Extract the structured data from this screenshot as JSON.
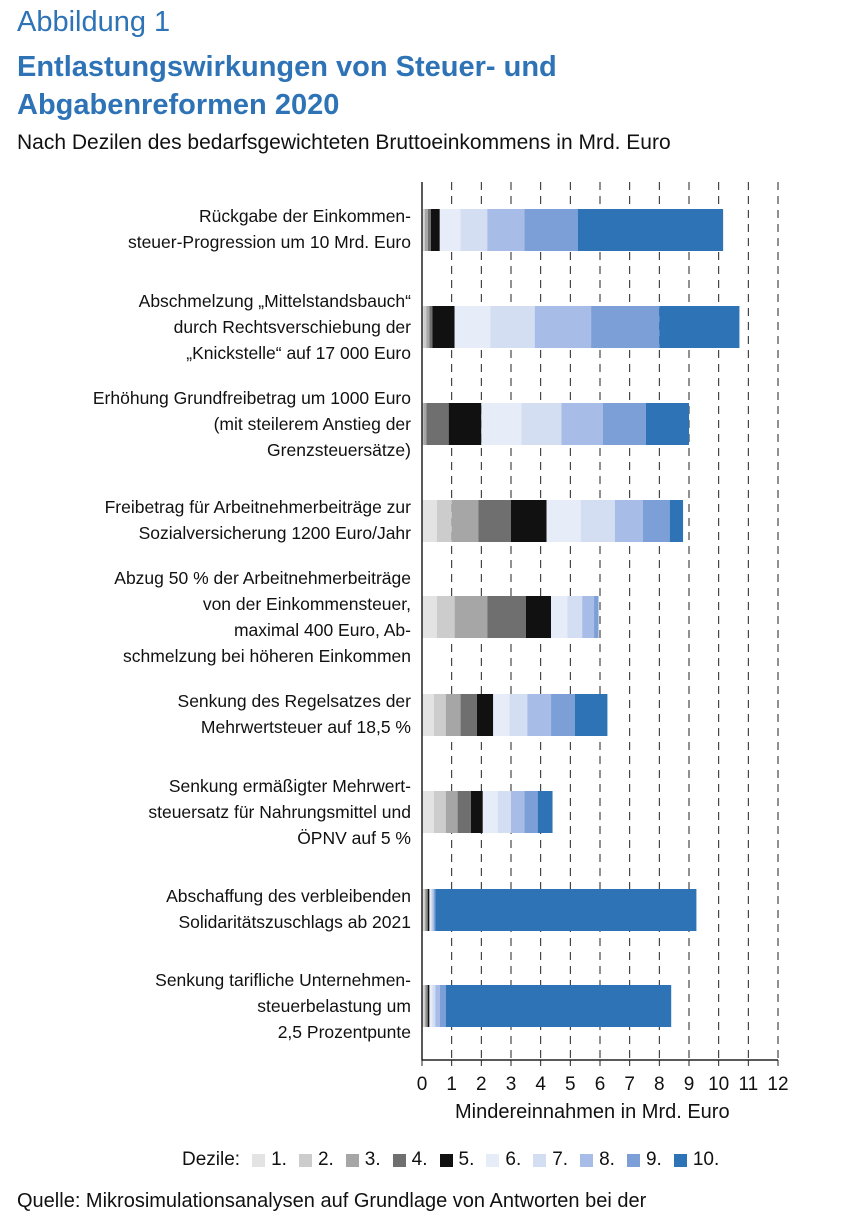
{
  "figure": {
    "label": "Abbildung 1",
    "title": "Entlastungswirkungen von Steuer- und Abgabenreformen 2020",
    "subtitle": "Nach Dezilen des bedarfsgewichteten Bruttoeinkommens in Mrd. Euro",
    "source": "Quelle: Mikrosimulationsanalysen auf Grundlage von Antworten bei der"
  },
  "colors": {
    "title": "#2e73b6",
    "deciles": [
      "#e3e3e3",
      "#cccccc",
      "#a6a6a6",
      "#6f6f6f",
      "#111111",
      "#e6ecf8",
      "#d3def3",
      "#a7bce6",
      "#7b9fd6",
      "#2e73b6"
    ]
  },
  "chart_data": {
    "type": "bar",
    "orientation": "horizontal",
    "stacked": true,
    "categories": [
      "Rückgabe der Einkommen-\nsteuer-Progression um 10 Mrd. Euro",
      "Abschmelzung „Mittelstandsbauch“\ndurch Rechtsverschiebung der\n„Knickstelle“ auf 17 000 Euro",
      "Erhöhung Grundfreibetrag um 1000 Euro\n(mit steilerem Anstieg der\nGrenzsteuersätze)",
      "Freibetrag für Arbeitnehmerbeiträge zur\nSozialversicherung 1200 Euro/Jahr",
      "Abzug 50 % der Arbeitnehmerbeiträge\nvon der Einkommensteuer,\nmaximal 400 Euro, Ab-\nschmelzung bei höheren Einkommen",
      "Senkung des Regelsatzes der\nMehrwertsteuer auf 18,5 %",
      "Senkung ermäßigter Mehrwert-\nsteuersatz für Nahrungsmittel und\nÖPNV auf 5 %",
      "Abschaffung des verbleibenden\nSolidaritätszuschlags ab 2021",
      "Senkung tarifliche Unternehmen-\nsteuerbelastung um\n2,5 Prozentpunte"
    ],
    "series": [
      {
        "name": "1.",
        "values": [
          0.05,
          0.05,
          0.0,
          0.5,
          0.5,
          0.4,
          0.4,
          0.05,
          0.05
        ]
      },
      {
        "name": "2.",
        "values": [
          0.05,
          0.1,
          0.05,
          0.5,
          0.6,
          0.4,
          0.4,
          0.05,
          0.05
        ]
      },
      {
        "name": "3.",
        "values": [
          0.1,
          0.1,
          0.1,
          0.9,
          1.1,
          0.5,
          0.4,
          0.05,
          0.05
        ]
      },
      {
        "name": "4.",
        "values": [
          0.1,
          0.1,
          0.75,
          1.1,
          1.3,
          0.55,
          0.45,
          0.05,
          0.05
        ]
      },
      {
        "name": "5.",
        "values": [
          0.3,
          0.75,
          1.1,
          1.2,
          0.85,
          0.55,
          0.4,
          0.05,
          0.05
        ]
      },
      {
        "name": "6.",
        "values": [
          0.7,
          1.2,
          1.35,
          1.15,
          0.55,
          0.55,
          0.5,
          0.05,
          0.1
        ]
      },
      {
        "name": "7.",
        "values": [
          0.9,
          1.5,
          1.35,
          1.15,
          0.5,
          0.6,
          0.45,
          0.05,
          0.1
        ]
      },
      {
        "name": "8.",
        "values": [
          1.25,
          1.9,
          1.4,
          0.95,
          0.4,
          0.8,
          0.45,
          0.05,
          0.15
        ]
      },
      {
        "name": "9.",
        "values": [
          1.8,
          2.3,
          1.45,
          0.9,
          0.15,
          0.8,
          0.45,
          0.05,
          0.2
        ]
      },
      {
        "name": "10.",
        "values": [
          4.9,
          2.7,
          1.45,
          0.45,
          0.0,
          1.1,
          0.5,
          8.8,
          7.6
        ]
      }
    ],
    "xlabel": "Mindereinnahmen in Mrd. Euro",
    "xlim": [
      0,
      12
    ],
    "xticks": [
      "0",
      "1",
      "2",
      "3",
      "4",
      "5",
      "6",
      "7",
      "8",
      "9",
      "10",
      "11",
      "12"
    ],
    "grid": "vertical dashed",
    "legend_title": "Dezile:",
    "legend_position": "bottom"
  }
}
